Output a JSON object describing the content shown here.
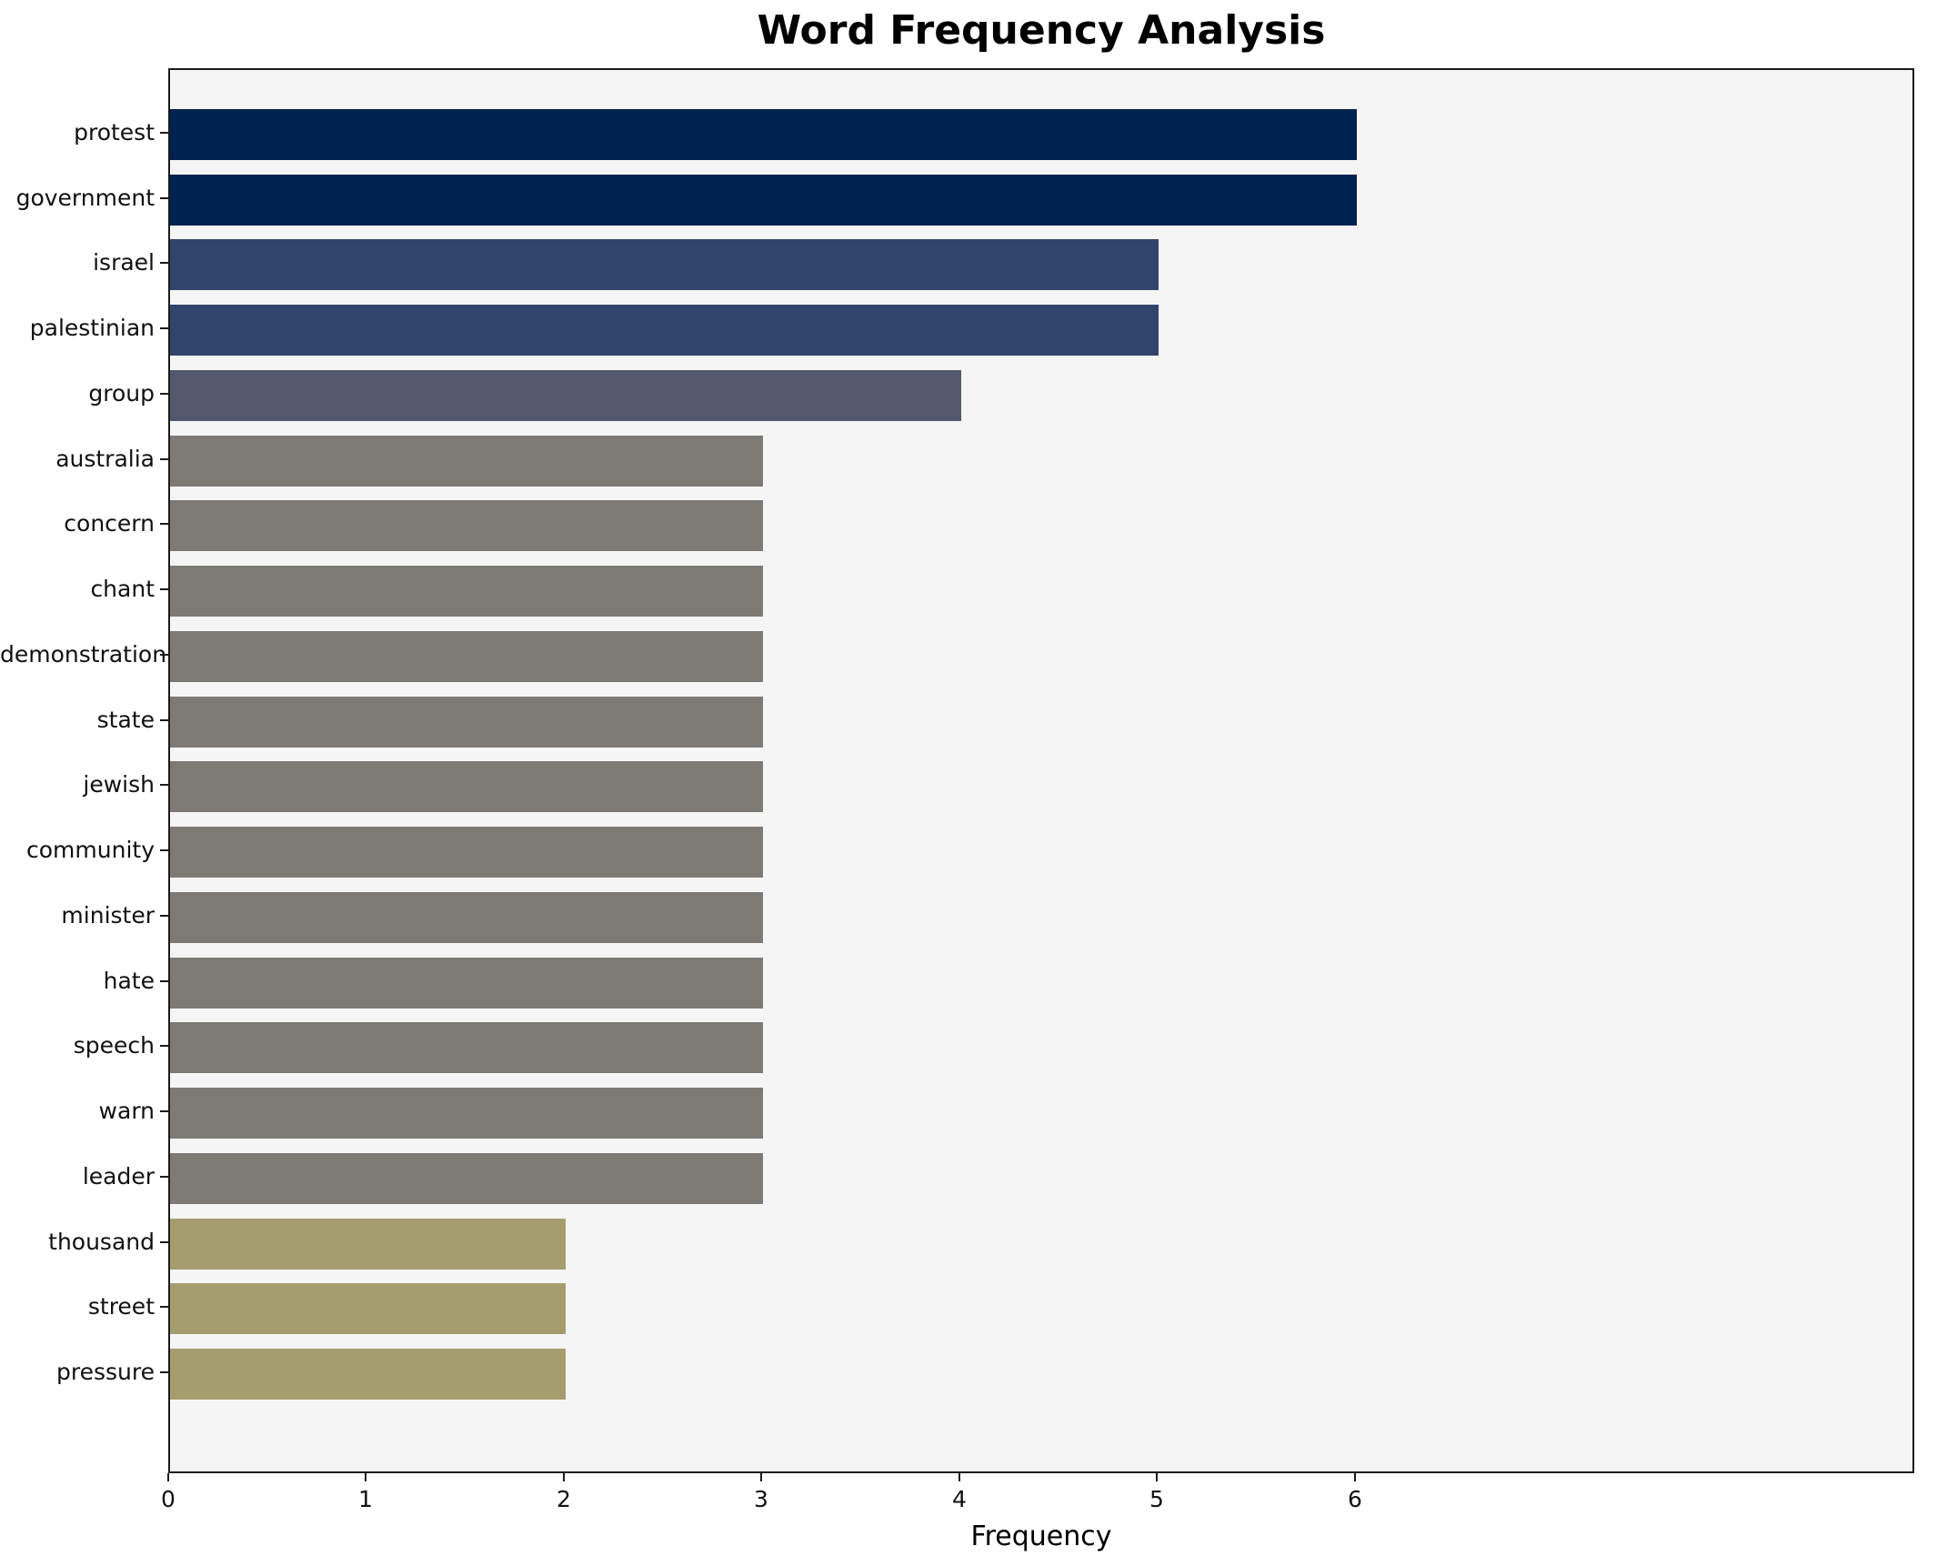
{
  "chart_data": {
    "type": "bar",
    "orientation": "horizontal",
    "title": "Word Frequency Analysis",
    "xlabel": "Frequency",
    "ylabel": "",
    "categories": [
      "protest",
      "government",
      "israel",
      "palestinian",
      "group",
      "australia",
      "concern",
      "chant",
      "demonstration",
      "state",
      "jewish",
      "community",
      "minister",
      "hate",
      "speech",
      "warn",
      "leader",
      "thousand",
      "street",
      "pressure"
    ],
    "values": [
      6,
      6,
      5,
      5,
      4,
      3,
      3,
      3,
      3,
      3,
      3,
      3,
      3,
      3,
      3,
      3,
      3,
      2,
      2,
      2
    ],
    "colors_by_value": {
      "6": "#00224e",
      "5": "#31446b",
      "4": "#53596c",
      "3": "#7d7a74",
      "2": "#a69d6f"
    },
    "xticks": [
      0,
      1,
      2,
      3,
      4,
      5,
      6
    ],
    "xlim": [
      0,
      8.83
    ],
    "grid": false,
    "plot_background": "#f5f5f5",
    "figure_background": "#ffffff"
  }
}
